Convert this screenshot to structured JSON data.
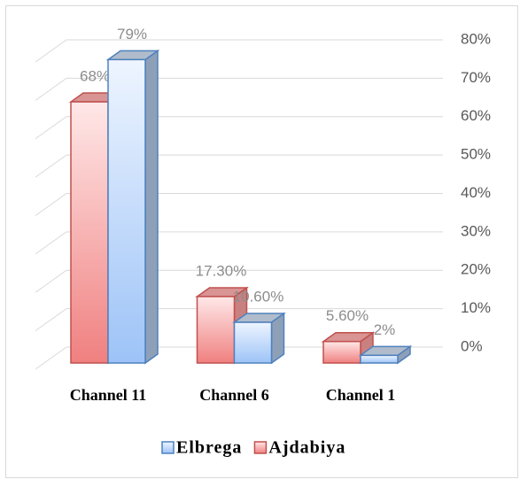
{
  "chart_data": {
    "type": "bar3d",
    "categories": [
      "Channel 11",
      "Channel 6",
      "Channel 1"
    ],
    "series": [
      {
        "name": "Ajdabiya",
        "color": "#f08080",
        "values": [
          68,
          17.3,
          5.6
        ],
        "value_labels": [
          "68%",
          "17.30%",
          "5.60%"
        ]
      },
      {
        "name": "Elbrega",
        "color": "#9dc3f7",
        "values": [
          79,
          10.6,
          2
        ],
        "value_labels": [
          "79%",
          "10.60%",
          "2%"
        ]
      }
    ],
    "ylim": [
      0,
      80
    ],
    "yticks": [
      {
        "value": 0,
        "label": "0%"
      },
      {
        "value": 10,
        "label": "10%"
      },
      {
        "value": 20,
        "label": "20%"
      },
      {
        "value": 30,
        "label": "30%"
      },
      {
        "value": 40,
        "label": "40%"
      },
      {
        "value": 50,
        "label": "50%"
      },
      {
        "value": 60,
        "label": "60%"
      },
      {
        "value": 70,
        "label": "70%"
      },
      {
        "value": 80,
        "label": "80%"
      }
    ],
    "grid": true,
    "legend": "bottom"
  }
}
